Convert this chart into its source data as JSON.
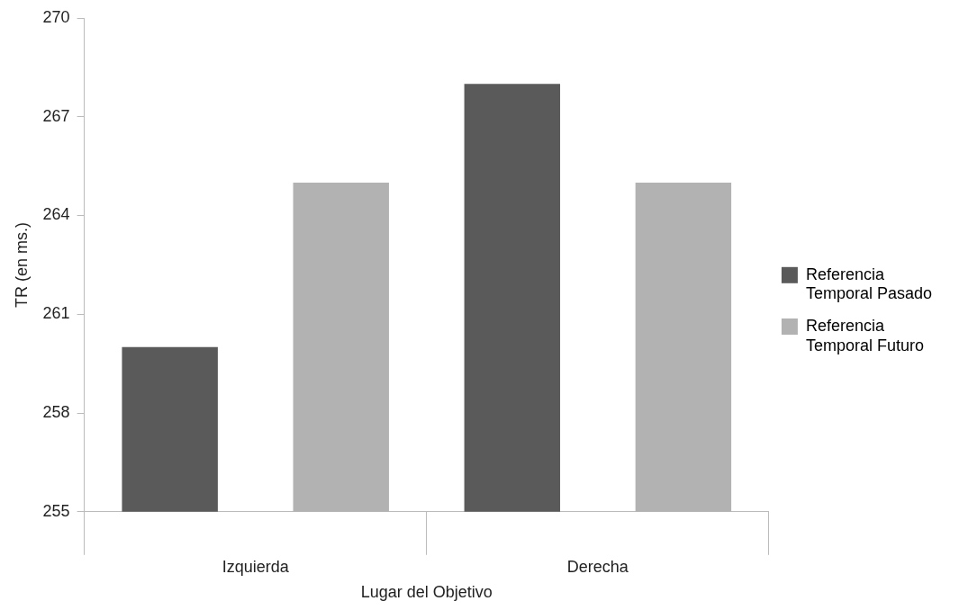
{
  "chart_data": {
    "type": "bar",
    "xlabel": "Lugar del Objetivo",
    "ylabel": "TR (en ms.)",
    "categories": [
      "Izquierda",
      "Derecha"
    ],
    "series": [
      {
        "name": "Referencia Temporal Pasado",
        "color": "#5a5a5a",
        "values": [
          260,
          268
        ]
      },
      {
        "name": "Referencia Temporal Futuro",
        "color": "#b2b2b2",
        "values": [
          265,
          265
        ]
      }
    ],
    "ylim": [
      255,
      270
    ],
    "yticks": [
      255,
      258,
      261,
      264,
      267,
      270
    ],
    "grid": false,
    "legend": "right"
  }
}
